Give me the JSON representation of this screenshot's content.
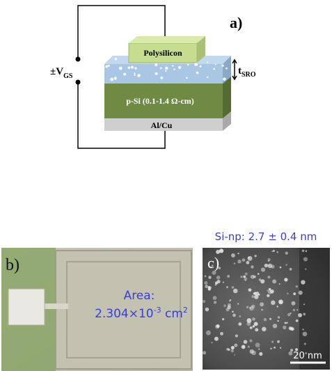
{
  "panel_a": {
    "label": "a)",
    "voltage": {
      "main": "±V",
      "sub": "GS"
    },
    "thickness": {
      "main": "t",
      "sub": "SRO"
    },
    "layers": {
      "top": "Polysilicon",
      "substrate": "p-Si (0.1-1.4 Ω-cm)",
      "bottom": "Al/Cu"
    }
  },
  "panel_b": {
    "label": "b)",
    "area_title": "Area:",
    "area_value": {
      "mantissa": "2.304×10",
      "exponent": "-3",
      "unit": " cm",
      "unit_exponent": "2"
    }
  },
  "panel_c": {
    "label": "c)",
    "caption": "Si-np: 2.7 ± 0.4 nm",
    "scale_bar": "20 nm"
  }
}
